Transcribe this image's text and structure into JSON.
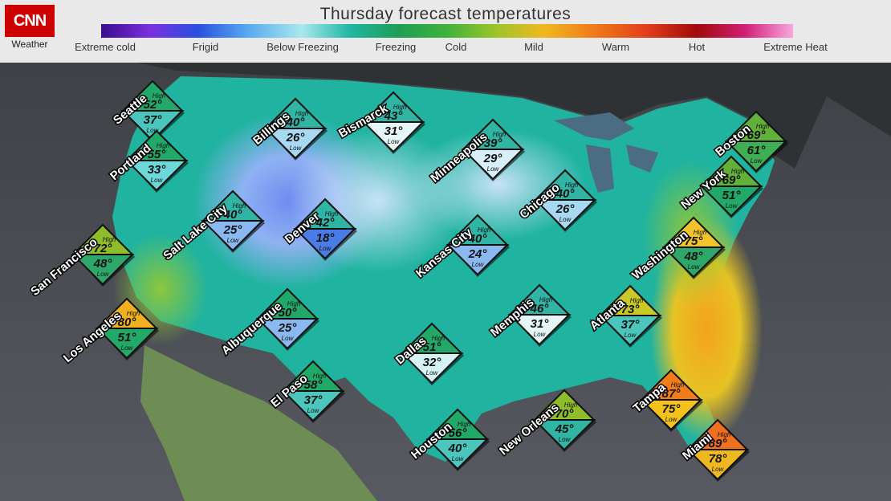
{
  "brand": {
    "logo": "CNN",
    "sub": "Weather"
  },
  "title": "Thursday forecast temperatures",
  "scale": {
    "colors": [
      "#3b0d8c",
      "#7a2fe0",
      "#2a4fe0",
      "#55a8f0",
      "#a9e8ee",
      "#1fb6a4",
      "#1f9e55",
      "#3fb23c",
      "#9bc52a",
      "#f0b820",
      "#f07d1a",
      "#e23c1a",
      "#a10a0a",
      "#d21d76",
      "#f7a8e0"
    ],
    "labels": [
      "Extreme cold",
      "Frigid",
      "Below Freezing",
      "Freezing",
      "Cold",
      "Mild",
      "Warm",
      "Hot",
      "Extreme Heat"
    ]
  },
  "hi_tag": "High",
  "lo_tag": "Low",
  "cities": [
    {
      "name": "Seattle",
      "high": "52°",
      "low": "37°",
      "hi_color": "#22a868",
      "lo_color": "#4cc6bc"
    },
    {
      "name": "Portland",
      "high": "55°",
      "low": "33°",
      "hi_color": "#22a868",
      "lo_color": "#6cd8da"
    },
    {
      "name": "San Francisco",
      "high": "72°",
      "low": "48°",
      "hi_color": "#8fbc2a",
      "lo_color": "#2da86a"
    },
    {
      "name": "Los Angeles",
      "high": "80°",
      "low": "51°",
      "hi_color": "#f0b020",
      "lo_color": "#22a868"
    },
    {
      "name": "Billings",
      "high": "40°",
      "low": "26°",
      "hi_color": "#30b4a4",
      "lo_color": "#a7d9f2"
    },
    {
      "name": "Salt Lake City",
      "high": "40°",
      "low": "25°",
      "hi_color": "#30b4a4",
      "lo_color": "#8ab8f0"
    },
    {
      "name": "Denver",
      "high": "42°",
      "low": "18°",
      "hi_color": "#30b4a4",
      "lo_color": "#4a7ce6"
    },
    {
      "name": "Albuquerque",
      "high": "50°",
      "low": "25°",
      "hi_color": "#22a868",
      "lo_color": "#8ab8f0"
    },
    {
      "name": "El Paso",
      "high": "58°",
      "low": "37°",
      "hi_color": "#22a868",
      "lo_color": "#4cc6bc"
    },
    {
      "name": "Bismarck",
      "high": "43°",
      "low": "31°",
      "hi_color": "#30b4a4",
      "lo_color": "#e6f6f6"
    },
    {
      "name": "Dallas",
      "high": "51°",
      "low": "32°",
      "hi_color": "#22a868",
      "lo_color": "#d6f2f2"
    },
    {
      "name": "Houston",
      "high": "56°",
      "low": "40°",
      "hi_color": "#22a868",
      "lo_color": "#4cc6bc"
    },
    {
      "name": "Kansas City",
      "high": "40°",
      "low": "24°",
      "hi_color": "#30b4a4",
      "lo_color": "#8ab8f0"
    },
    {
      "name": "Minneapolis",
      "high": "39°",
      "low": "29°",
      "hi_color": "#30b4a4",
      "lo_color": "#d8eef8"
    },
    {
      "name": "Chicago",
      "high": "40°",
      "low": "26°",
      "hi_color": "#30b4a4",
      "lo_color": "#a7d9f2"
    },
    {
      "name": "Memphis",
      "high": "46°",
      "low": "31°",
      "hi_color": "#30b4a4",
      "lo_color": "#e6f6f6"
    },
    {
      "name": "New Orleans",
      "high": "70°",
      "low": "45°",
      "hi_color": "#8fbc2a",
      "lo_color": "#30b4a4"
    },
    {
      "name": "Atlanta",
      "high": "73°",
      "low": "37°",
      "hi_color": "#c8c828",
      "lo_color": "#4cc6bc"
    },
    {
      "name": "Washington",
      "high": "75°",
      "low": "48°",
      "hi_color": "#f0c42a",
      "lo_color": "#2da86a"
    },
    {
      "name": "New York",
      "high": "69°",
      "low": "51°",
      "hi_color": "#60b03a",
      "lo_color": "#22a868"
    },
    {
      "name": "Boston",
      "high": "69°",
      "low": "61°",
      "hi_color": "#60b03a",
      "lo_color": "#3fae55"
    },
    {
      "name": "Tampa",
      "high": "87°",
      "low": "75°",
      "hi_color": "#f07d1a",
      "lo_color": "#f5c21c"
    },
    {
      "name": "Miami",
      "high": "89°",
      "low": "78°",
      "hi_color": "#f07020",
      "lo_color": "#f0b820"
    }
  ]
}
